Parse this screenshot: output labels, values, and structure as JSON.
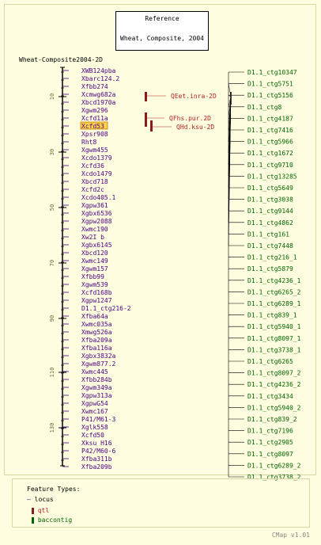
{
  "reference": {
    "label": "Reference",
    "map_name": "Wheat, Composite, 2004"
  },
  "map": {
    "title": "Wheat-Composite2004-2D",
    "ticks": [
      "10",
      "30",
      "50",
      "70",
      "90",
      "110",
      "130"
    ],
    "markers": [
      "XWB124pba",
      "Xbarc124.2",
      "Xfbb274",
      "Xcmwg682a",
      "Xbcd1970a",
      "Xgwm296",
      "Xcfd11a",
      "Xcfd53",
      "Xpsr908",
      "Rht8",
      "Xgwm455",
      "Xcdo1379",
      "Xcfd36",
      "Xcdo1479",
      "Xbcd718",
      "Xcfd2c",
      "Xcdo405.1",
      "Xgpw361",
      "Xgbx6536",
      "Xgpw2088",
      "Xwmc190",
      "Xw2I b",
      "Xgbx6145",
      "Xbcd120",
      "Xwmc149",
      "Xgwm157",
      "Xfbb99",
      "Xgwm539",
      "Xcfd168b",
      "Xgpw1247",
      "D1.1_ctg216-2",
      "Xfba64a",
      "Xwmc035a",
      "Xmwg526a",
      "Xfba209a",
      "Xfba116a",
      "Xgbx3832a",
      "Xgwm877.2",
      "Xwmc445",
      "Xfbb284b",
      "Xgwm349a",
      "Xgpw313a",
      "XgpwG54",
      "Xwmc167",
      "P41/M61-3",
      "Xglk558",
      "Xcfd50",
      "Xksu H16",
      "P42/M60-6",
      "Xfba311b",
      "Xfba209b"
    ],
    "highlighted_marker": "Xcfd53"
  },
  "qtls": [
    "QEet.inra-2D",
    "QFhs.pur.2D",
    "QHd.ksu-2D"
  ],
  "contigs": [
    "D1.1_ctg10347",
    "D1.1_ctg5751",
    "D1.1_ctg5156",
    "D1.1_ctg8",
    "D1.1_ctg4187",
    "D1.1_ctg7416",
    "D1.1_ctg5966",
    "D1.1_ctg1672",
    "D1.1_ctg9710",
    "D1.1_ctg13285",
    "D1.1_ctg5649",
    "D1.1_ctg3038",
    "D1.1_ctg9144",
    "D1.1_ctg4862",
    "D1.1_ctg161",
    "D1.1_ctg7448",
    "D1.1_ctg216_1",
    "D1.1_ctg5879",
    "D1.1_ctg4236_1",
    "D1.1_ctg6265_2",
    "D1.1_ctg6289_1",
    "D1.1_ctg839_1",
    "D1.1_ctg5940_1",
    "D1.1_ctg8097_1",
    "D1.1_ctg3738_1",
    "D1.1_ctg6265",
    "D1.1_ctg8097_2",
    "D1.1_ctg4236_2",
    "D1.1_ctg3434",
    "D1.1_ctg5940_2",
    "D1.1_ctg839_2",
    "D1.1_ctg7196",
    "D1.1_ctg2905",
    "D1.1_ctg8097",
    "D1.1_ctg6289_2",
    "D1.1_ctg3738_2"
  ],
  "legend": {
    "title": "Feature Types:",
    "items": [
      "locus",
      "qtl",
      "baccontig"
    ]
  },
  "footer": "CMap v1.01",
  "colors": {
    "marker": "#4b0082",
    "qtl": "#8b1a1a",
    "contig": "#006400",
    "highlight": "#ffd24d",
    "background": "#fefddf"
  }
}
